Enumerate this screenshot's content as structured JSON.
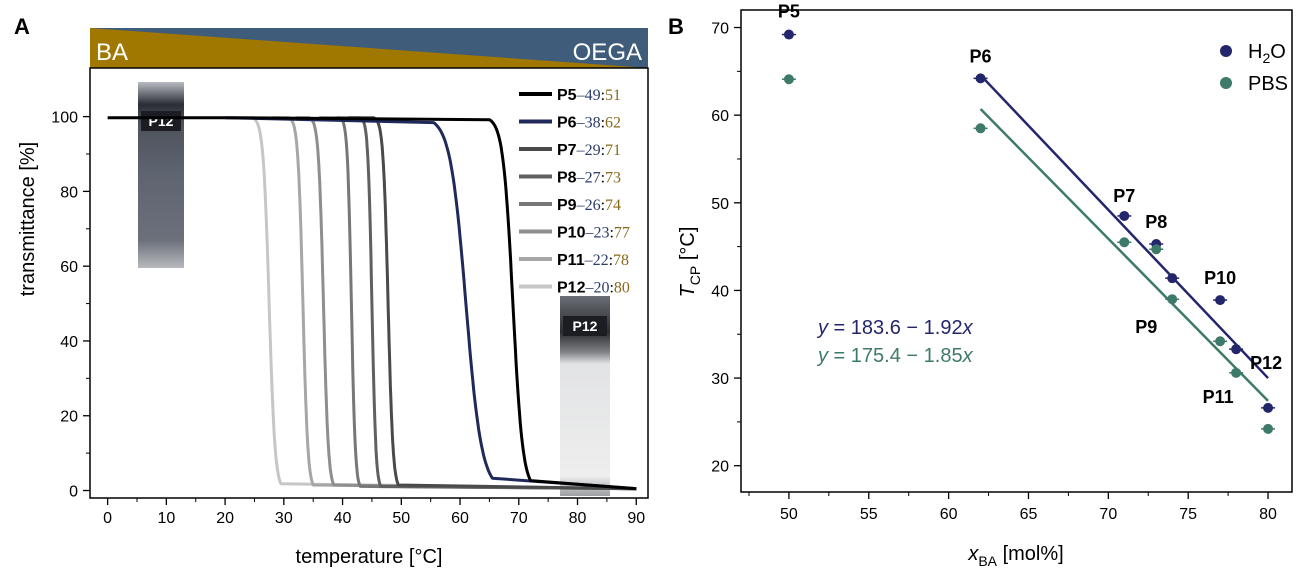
{
  "chart_data": [
    {
      "panel": "A",
      "type": "line",
      "xlabel": "temperature [°C]",
      "ylabel": "transmittance [%]",
      "xlim": [
        -3,
        92
      ],
      "ylim": [
        -2,
        113
      ],
      "xticks": [
        0,
        10,
        20,
        30,
        40,
        50,
        60,
        70,
        80,
        90
      ],
      "yticks": [
        0,
        20,
        40,
        60,
        80,
        100
      ],
      "banner": {
        "left": "BA",
        "right": "OEGA",
        "left_color": "#a07800",
        "right_color": "#3f5c7a"
      },
      "photo_labels": [
        "P12",
        "P12"
      ],
      "series": [
        {
          "name": "P5",
          "ratio_a": "49",
          "ratio_b": "51",
          "color": "#000000",
          "start": 20,
          "sharp_start": 66.5,
          "drop_end": 71.5
        },
        {
          "name": "P6",
          "ratio_a": "38",
          "ratio_b": "62",
          "color": "#1f2a5a",
          "start": 20,
          "sharp_start": 57.0,
          "drop_end": 65.0
        },
        {
          "name": "P7",
          "ratio_a": "29",
          "ratio_b": "71",
          "color": "#4a4a4a",
          "start": 41,
          "sharp_start": 46.5,
          "drop_end": 49.0
        },
        {
          "name": "P8",
          "ratio_a": "27",
          "ratio_b": "73",
          "color": "#606060",
          "start": 39,
          "sharp_start": 44.0,
          "drop_end": 46.0
        },
        {
          "name": "P9",
          "ratio_a": "26",
          "ratio_b": "74",
          "color": "#777777",
          "start": 36,
          "sharp_start": 40.5,
          "drop_end": 42.5
        },
        {
          "name": "P10",
          "ratio_a": "23",
          "ratio_b": "77",
          "color": "#8e8e8e",
          "start": 32,
          "sharp_start": 35.5,
          "drop_end": 38.0
        },
        {
          "name": "P11",
          "ratio_a": "22",
          "ratio_b": "78",
          "color": "#a6a6a6",
          "start": 28,
          "sharp_start": 32.0,
          "drop_end": 34.5
        },
        {
          "name": "P12",
          "ratio_a": "20",
          "ratio_b": "80",
          "color": "#c6c6c6",
          "start": 21,
          "sharp_start": 26.0,
          "drop_end": 29.0
        }
      ],
      "x_end": 90
    },
    {
      "panel": "B",
      "type": "scatter",
      "xlabel": "x",
      "xlabel_sub": "BA",
      "xlabel_unit": "[mol%]",
      "ylabel": "T",
      "ylabel_sub": "CP",
      "ylabel_unit": "[°C]",
      "xlim": [
        47,
        81.5
      ],
      "ylim": [
        17,
        72
      ],
      "xticks": [
        50,
        55,
        60,
        65,
        70,
        75,
        80
      ],
      "yticks": [
        20,
        30,
        40,
        50,
        60,
        70
      ],
      "legend_position": "top-right",
      "series": [
        {
          "name": "H2O",
          "label_main": "H",
          "label_sub": "2",
          "label_tail": "O",
          "color": "#23266b",
          "points": [
            [
              50,
              69.2
            ],
            [
              62,
              64.2
            ],
            [
              71,
              48.5
            ],
            [
              73,
              45.3
            ],
            [
              74,
              41.4
            ],
            [
              77,
              38.9
            ],
            [
              78,
              33.3
            ],
            [
              80,
              26.6
            ]
          ],
          "fit": {
            "equation": "= 183.6 − 1.92",
            "intercept": 183.6,
            "slope": -1.92,
            "x_range": [
              62,
              80
            ]
          }
        },
        {
          "name": "PBS",
          "label_main": "PBS",
          "label_sub": "",
          "label_tail": "",
          "color": "#3e7a6a",
          "points": [
            [
              50,
              64.1
            ],
            [
              62,
              58.5
            ],
            [
              71,
              45.5
            ],
            [
              73,
              44.7
            ],
            [
              74,
              39.0
            ],
            [
              77,
              34.2
            ],
            [
              78,
              30.6
            ],
            [
              80,
              24.2
            ]
          ],
          "fit": {
            "equation": "= 175.4 − 1.85",
            "intercept": 175.4,
            "slope": -1.85,
            "x_range": [
              62,
              80
            ]
          }
        }
      ],
      "point_labels": [
        {
          "text": "P5",
          "x": 50,
          "y": 69.2
        },
        {
          "text": "P6",
          "x": 62,
          "y": 64.2
        },
        {
          "text": "P7",
          "x": 71,
          "y": 48.5
        },
        {
          "text": "P8",
          "x": 73,
          "y": 45.3
        },
        {
          "text": "P9",
          "x": 74,
          "y": 39.0
        },
        {
          "text": "P10",
          "x": 77,
          "y": 38.9
        },
        {
          "text": "P11",
          "x": 78,
          "y": 30.6
        },
        {
          "text": "P12",
          "x": 78,
          "y": 33.3
        }
      ]
    }
  ]
}
